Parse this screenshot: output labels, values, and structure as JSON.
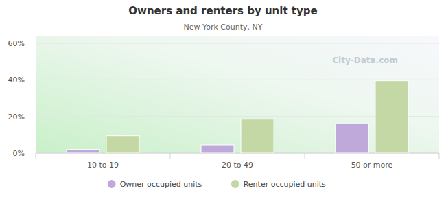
{
  "chart_data": {
    "type": "bar",
    "title": "Owners and renters by unit type",
    "subtitle": "New York County, NY",
    "watermark": "City-Data.com",
    "categories": [
      "10 to 19",
      "20 to 49",
      "50 or more"
    ],
    "series": [
      {
        "name": "Owner occupied units",
        "color": "#bfa9da",
        "values": [
          2,
          4.5,
          16
        ]
      },
      {
        "name": "Renter occupied units",
        "color": "#c4d8a5",
        "values": [
          9.5,
          18.5,
          39.5
        ]
      }
    ],
    "ylim": [
      0,
      60
    ],
    "yticks": [
      {
        "value": 0,
        "label": "0%"
      },
      {
        "value": 20,
        "label": "20%"
      },
      {
        "value": 40,
        "label": "40%"
      },
      {
        "value": 60,
        "label": "60%"
      }
    ],
    "grid": true,
    "legend": "bottom"
  }
}
